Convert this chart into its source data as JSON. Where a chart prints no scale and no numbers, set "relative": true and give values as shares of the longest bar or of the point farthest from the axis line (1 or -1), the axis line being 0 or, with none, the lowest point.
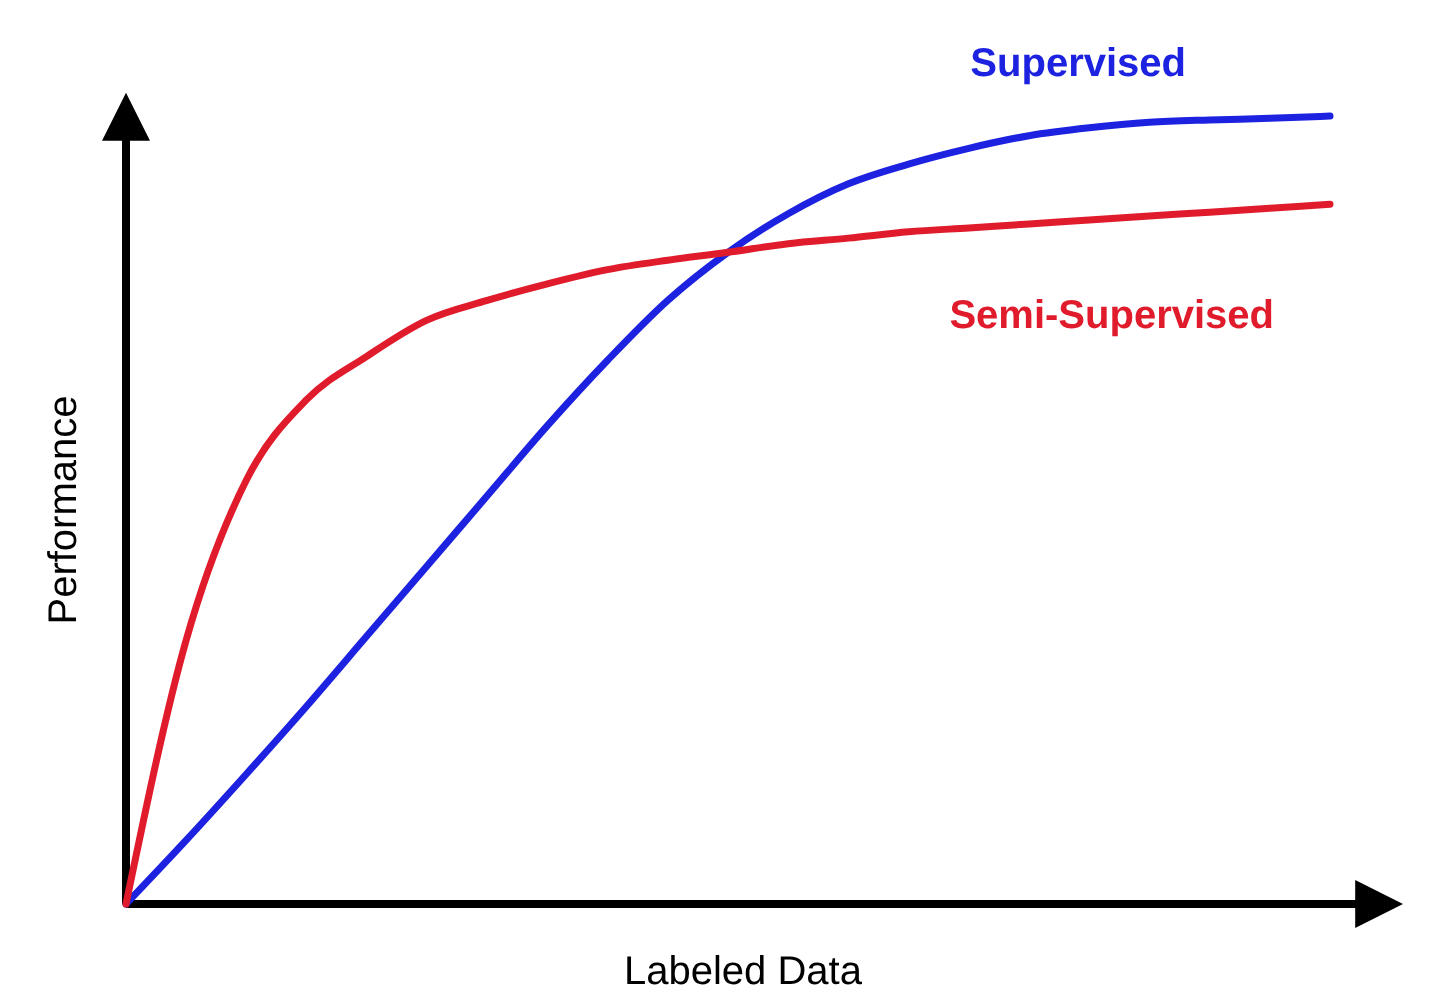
{
  "chart_data": {
    "type": "line",
    "relative": true,
    "xlabel": "Labeled Data",
    "ylabel": "Performance",
    "legend": false,
    "line_style": "solid",
    "marker": "none",
    "categories": [
      null,
      null,
      null,
      null,
      null,
      null,
      null,
      null,
      null,
      null,
      null,
      null,
      null,
      null,
      null,
      null,
      null,
      null,
      null,
      null,
      null
    ],
    "series": [
      {
        "name": "Supervised",
        "color": "#1c22e0",
        "values": [
          0,
          0.081,
          0.165,
          0.251,
          0.34,
          0.429,
          0.518,
          0.607,
          0.69,
          0.766,
          0.827,
          0.876,
          0.914,
          0.939,
          0.959,
          0.975,
          0.985,
          0.992,
          0.995,
          0.997,
          1
        ]
      },
      {
        "name": "Semi-Supervised",
        "color": "#e01c2c",
        "values": [
          0,
          0.335,
          0.538,
          0.64,
          0.695,
          0.741,
          0.766,
          0.787,
          0.805,
          0.817,
          0.827,
          0.838,
          0.845,
          0.853,
          0.858,
          0.863,
          0.868,
          0.873,
          0.878,
          0.883,
          0.888
        ]
      }
    ]
  }
}
